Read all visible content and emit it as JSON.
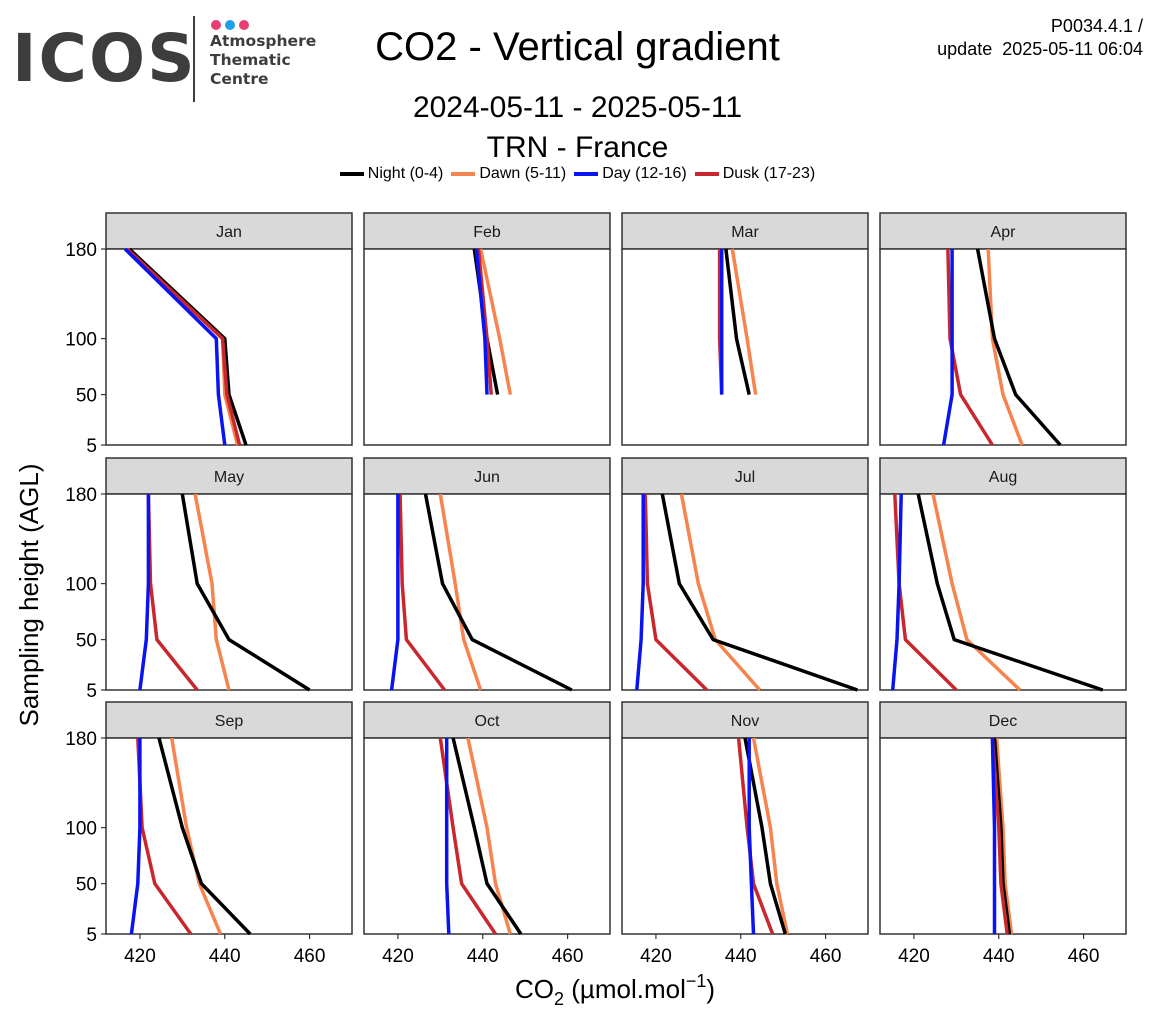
{
  "logo": {
    "name": "ICOS",
    "subtitle_lines": [
      "Atmosphere",
      "Thematic",
      "Centre"
    ],
    "dot_colors": [
      "#e83e72",
      "#1ea0e6",
      "#e83e72"
    ]
  },
  "header": {
    "title": "CO2 - Vertical gradient",
    "period": "2024-05-11 - 2025-05-11",
    "station": "TRN - France",
    "product_id": "P0034.4.1 /",
    "update": "update  2025-05-11 06:04"
  },
  "colors": {
    "night": "#000000",
    "dawn": "#f7834e",
    "day": "#0a14f0",
    "dusk": "#c8282d",
    "strip_bg": "#d9d9d9",
    "panel_border": "#333333"
  },
  "chart_data": {
    "type": "line",
    "xlabel": "CO",
    "xlabel_sub": "2",
    "xlabel_unit": " (µmol.mol",
    "xlabel_sup": "−1",
    "xlabel_end": ")",
    "ylabel": "Sampling height (AGL)",
    "xlim": [
      412,
      470
    ],
    "xticks": [
      420,
      440,
      460
    ],
    "y_levels": [
      5,
      50,
      100,
      180
    ],
    "yticks": [
      5,
      50,
      100,
      180
    ],
    "legend": [
      {
        "key": "night",
        "label": "Night (0-4)"
      },
      {
        "key": "dawn",
        "label": "Dawn (5-11)"
      },
      {
        "key": "day",
        "label": "Day (12-16)"
      },
      {
        "key": "dusk",
        "label": "Dusk (17-23)"
      }
    ],
    "panels": [
      {
        "month": "Jan",
        "series": {
          "night": [
            445.0,
            441.0,
            440.0,
            417.5
          ],
          "dawn": [
            443.0,
            440.0,
            439.5,
            417.0
          ],
          "day": [
            440.0,
            438.5,
            438.0,
            416.5
          ],
          "dusk": [
            443.5,
            440.5,
            439.5,
            417.0
          ]
        }
      },
      {
        "month": "Feb",
        "series": {
          "night": [
            null,
            443.5,
            441.0,
            438.0
          ],
          "dawn": [
            null,
            446.5,
            444.0,
            439.5
          ],
          "day": [
            null,
            441.0,
            440.5,
            438.5
          ],
          "dusk": [
            null,
            442.0,
            441.0,
            439.0
          ]
        }
      },
      {
        "month": "Mar",
        "series": {
          "night": [
            null,
            442.0,
            439.0,
            436.5
          ],
          "dawn": [
            null,
            443.5,
            441.5,
            438.0
          ],
          "day": [
            null,
            435.5,
            435.5,
            435.5
          ],
          "dusk": [
            null,
            435.5,
            435.0,
            435.0
          ]
        }
      },
      {
        "month": "Apr",
        "series": {
          "night": [
            454.5,
            444.0,
            439.0,
            435.0
          ],
          "dawn": [
            445.5,
            441.0,
            438.5,
            437.5
          ],
          "day": [
            427.0,
            429.0,
            429.0,
            429.0
          ],
          "dusk": [
            438.5,
            431.0,
            428.5,
            428.0
          ]
        }
      },
      {
        "month": "May",
        "series": {
          "night": [
            460.0,
            441.0,
            433.5,
            430.0
          ],
          "dawn": [
            441.0,
            438.0,
            437.0,
            433.0
          ],
          "day": [
            420.0,
            421.5,
            422.0,
            422.0
          ],
          "dusk": [
            433.5,
            424.0,
            422.5,
            422.0
          ]
        }
      },
      {
        "month": "Jun",
        "series": {
          "night": [
            461.0,
            437.5,
            430.5,
            426.5
          ],
          "dawn": [
            439.5,
            435.5,
            433.5,
            430.0
          ],
          "day": [
            418.5,
            420.0,
            420.0,
            420.0
          ],
          "dusk": [
            431.0,
            422.0,
            421.0,
            420.5
          ]
        }
      },
      {
        "month": "Jul",
        "series": {
          "night": [
            467.5,
            433.5,
            425.5,
            421.5
          ],
          "dawn": [
            444.5,
            434.0,
            430.0,
            426.0
          ],
          "day": [
            415.5,
            416.5,
            417.0,
            417.0
          ],
          "dusk": [
            432.0,
            420.0,
            418.0,
            417.5
          ]
        }
      },
      {
        "month": "Aug",
        "series": {
          "night": [
            464.5,
            429.5,
            425.5,
            421.0
          ],
          "dawn": [
            445.0,
            432.5,
            429.0,
            424.5
          ],
          "day": [
            415.0,
            416.0,
            416.5,
            417.0
          ],
          "dusk": [
            430.0,
            418.0,
            416.5,
            415.5
          ]
        }
      },
      {
        "month": "Sep",
        "series": {
          "night": [
            446.0,
            434.5,
            430.0,
            424.5
          ],
          "dawn": [
            439.0,
            434.0,
            431.0,
            427.5
          ],
          "day": [
            418.0,
            419.5,
            420.0,
            420.0
          ],
          "dusk": [
            432.0,
            423.5,
            420.5,
            419.5
          ]
        }
      },
      {
        "month": "Oct",
        "series": {
          "night": [
            449.0,
            441.0,
            438.0,
            433.0
          ],
          "dawn": [
            446.5,
            443.0,
            441.0,
            436.5
          ],
          "day": [
            432.0,
            431.5,
            431.5,
            431.5
          ],
          "dusk": [
            443.0,
            435.0,
            433.0,
            430.0
          ]
        }
      },
      {
        "month": "Nov",
        "series": {
          "night": [
            450.5,
            447.0,
            445.0,
            441.0
          ],
          "dawn": [
            451.0,
            448.5,
            447.0,
            443.0
          ],
          "day": [
            443.0,
            442.5,
            442.0,
            442.0
          ],
          "dusk": [
            447.5,
            443.0,
            441.5,
            439.5
          ]
        }
      },
      {
        "month": "Dec",
        "series": {
          "night": [
            442.5,
            441.0,
            440.5,
            439.0
          ],
          "dawn": [
            443.0,
            441.5,
            441.0,
            439.5
          ],
          "day": [
            439.0,
            439.0,
            439.0,
            438.5
          ],
          "dusk": [
            442.0,
            440.5,
            440.0,
            438.5
          ]
        }
      }
    ]
  }
}
